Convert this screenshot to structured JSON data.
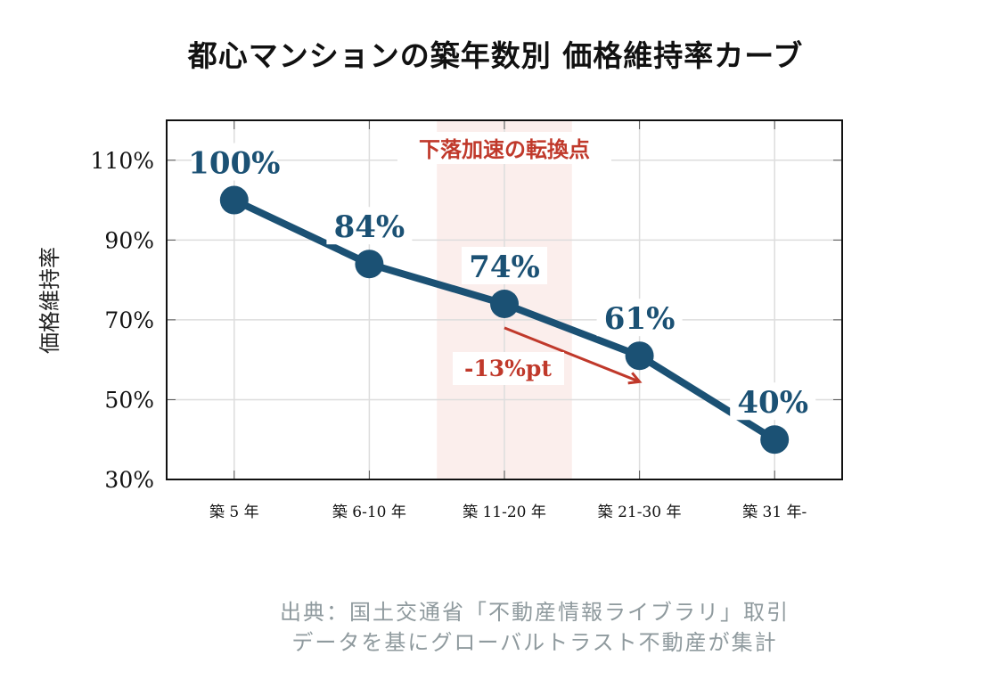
{
  "chart_data": {
    "type": "line",
    "title": "都心マンションの築年数別 価格維持率カーブ",
    "xlabel": "",
    "ylabel": "価格維持率",
    "categories": [
      "築 5 年",
      "築 6-10 年",
      "築 11-20 年",
      "築 21-30 年",
      "築 31 年-"
    ],
    "values": [
      100,
      84,
      74,
      61,
      40
    ],
    "data_labels": [
      "100%",
      "84%",
      "74%",
      "61%",
      "40%"
    ],
    "ylim": [
      30,
      120
    ],
    "yticks": [
      30,
      50,
      70,
      90,
      110
    ],
    "ytick_labels": [
      "30%",
      "50%",
      "70%",
      "90%",
      "110%"
    ],
    "grid": true,
    "line_color": "#1b5174",
    "highlight": {
      "from_category": "築 11-20 年",
      "label": "下落加速の転換点",
      "color": "#c0392b",
      "fill": "#fbeeec"
    },
    "arrow_annotation": {
      "label": "-13%pt",
      "from_category": "築 11-20 年",
      "to_category": "築 21-30 年",
      "from_value": 68,
      "to_value": 54.5,
      "color": "#c0392b"
    }
  },
  "source": {
    "line1": "出典：国土交通省「不動産情報ライブラリ」取引",
    "line2": "データを基にグローバルトラスト不動産が集計"
  }
}
